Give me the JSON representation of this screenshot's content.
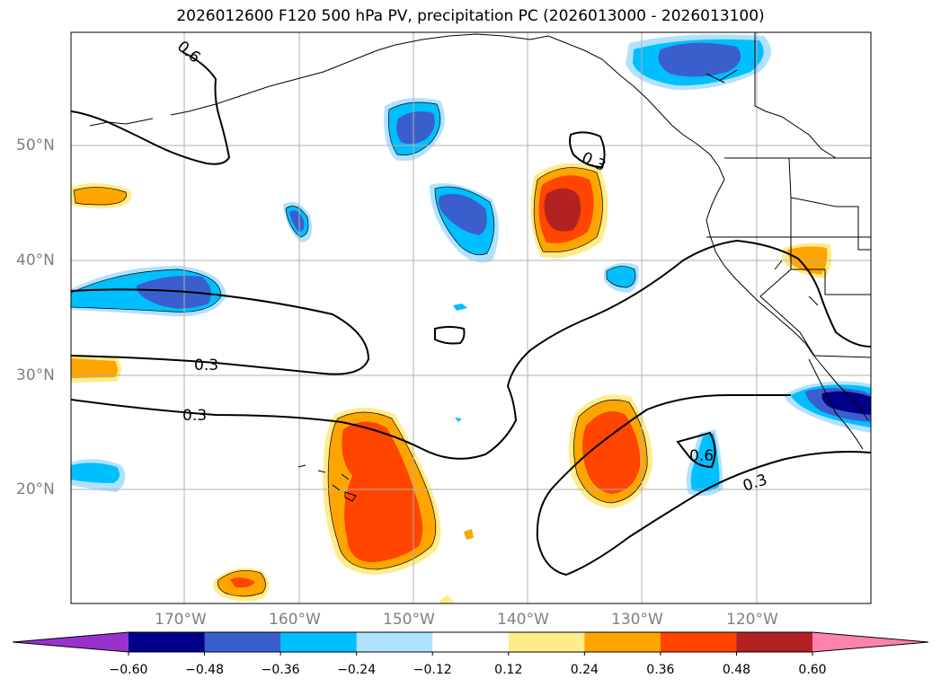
{
  "title": "2026012600 F120 500 hPa PV, precipitation PC (2026013000 - 2026013100)",
  "latitude_labels": [
    "50°N",
    "40°N",
    "30°N",
    "20°N"
  ],
  "longitude_labels": [
    "170°W",
    "160°W",
    "150°W",
    "140°W",
    "130°W",
    "120°W"
  ],
  "contour_labels": [
    "0.6",
    "0.3",
    "0.3",
    "0.3",
    "0.6",
    "0.3"
  ],
  "colorbar": {
    "tick_labels": [
      "−0.60",
      "−0.48",
      "−0.36",
      "−0.24",
      "−0.12",
      "0.12",
      "0.24",
      "0.36",
      "0.48",
      "0.60"
    ],
    "colors": [
      "#9932cc",
      "#00008b",
      "#3a5fcd",
      "#00bfff",
      "#b0e2ff",
      "#ffffff",
      "#ffec8b",
      "#ffa500",
      "#ff4500",
      "#b22222",
      "#ff82ab"
    ]
  }
}
